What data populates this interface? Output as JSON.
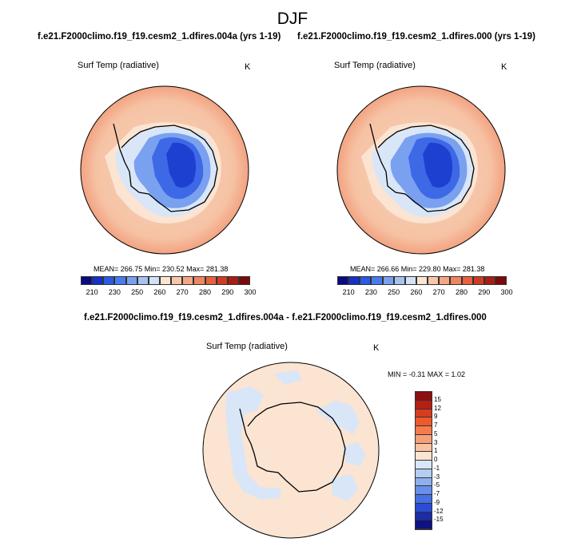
{
  "season": "DJF",
  "panel_left": {
    "title": "f.e21.F2000climo.f19_f19.cesm2_1.dfires.004a (yrs 1-19)",
    "variable": "Surf Temp (radiative)",
    "unit": "K",
    "stats": "MEAN= 266.75  Min= 230.52  Max= 281.38"
  },
  "panel_right": {
    "title": "f.e21.F2000climo.f19_f19.cesm2_1.dfires.000 (yrs 1-19)",
    "variable": "Surf Temp (radiative)",
    "unit": "K",
    "stats": "MEAN= 266.66  Min= 229.80  Max= 281.38"
  },
  "diff_panel": {
    "title": "f.e21.F2000climo.f19_f19.cesm2_1.dfires.004a - f.e21.F2000climo.f19_f19.cesm2_1.dfires.000",
    "variable": "Surf Temp (radiative)",
    "unit": "K",
    "stats": "MIN =  -0.31 MAX =   1.02"
  },
  "colorbar_abs": {
    "ticks": [
      "210",
      "230",
      "250",
      "260",
      "270",
      "280",
      "290",
      "300"
    ],
    "colors": [
      "#0a0a82",
      "#1432c8",
      "#2a5ae6",
      "#4a7af0",
      "#7aa0f0",
      "#a8c2f0",
      "#d2e2f5",
      "#fbe4d2",
      "#f7c8a8",
      "#f4a882",
      "#ef8660",
      "#e8623c",
      "#d03c22",
      "#a81e14",
      "#7c0a0a"
    ]
  },
  "colorbar_diff": {
    "ticks": [
      "15",
      "12",
      "9",
      "7",
      "5",
      "3",
      "1",
      "0",
      "-1",
      "-3",
      "-5",
      "-7",
      "-9",
      "-12",
      "-15"
    ],
    "colors": [
      "#8c1010",
      "#b81e14",
      "#d83c1e",
      "#ee5a2c",
      "#f47c4c",
      "#f7a078",
      "#f9c2a0",
      "#fbe4d2",
      "#d8e6f8",
      "#b4cdf2",
      "#8eb0ee",
      "#6890ea",
      "#4470e4",
      "#2a4cd8",
      "#1a2ca8",
      "#0c1282"
    ]
  }
}
